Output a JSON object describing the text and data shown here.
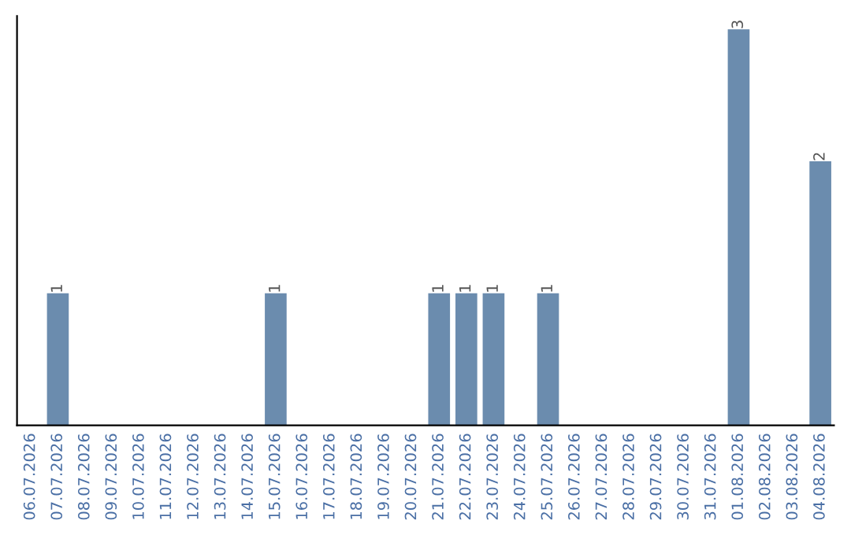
{
  "chart_data": {
    "type": "bar",
    "categories": [
      "06.07.2026",
      "07.07.2026",
      "08.07.2026",
      "09.07.2026",
      "10.07.2026",
      "11.07.2026",
      "12.07.2026",
      "13.07.2026",
      "14.07.2026",
      "15.07.2026",
      "16.07.2026",
      "17.07.2026",
      "18.07.2026",
      "19.07.2026",
      "20.07.2026",
      "21.07.2026",
      "22.07.2026",
      "23.07.2026",
      "24.07.2026",
      "25.07.2026",
      "26.07.2026",
      "27.07.2026",
      "28.07.2026",
      "29.07.2026",
      "30.07.2026",
      "31.07.2026",
      "01.08.2026",
      "02.08.2026",
      "03.08.2026",
      "04.08.2026"
    ],
    "values": [
      0,
      1,
      0,
      0,
      0,
      0,
      0,
      0,
      0,
      1,
      0,
      0,
      0,
      0,
      0,
      1,
      1,
      1,
      0,
      1,
      0,
      0,
      0,
      0,
      0,
      0,
      3,
      0,
      0,
      2
    ],
    "value_labels": [
      null,
      "1",
      null,
      null,
      null,
      null,
      null,
      null,
      null,
      "1",
      null,
      null,
      null,
      null,
      null,
      "1",
      "1",
      "1",
      null,
      "1",
      null,
      null,
      null,
      null,
      null,
      null,
      "3",
      null,
      null,
      "2"
    ],
    "color": "#6b8cae",
    "ylim": [
      0,
      3.1
    ],
    "tick_labels": "x",
    "grid": false,
    "legend": false
  }
}
